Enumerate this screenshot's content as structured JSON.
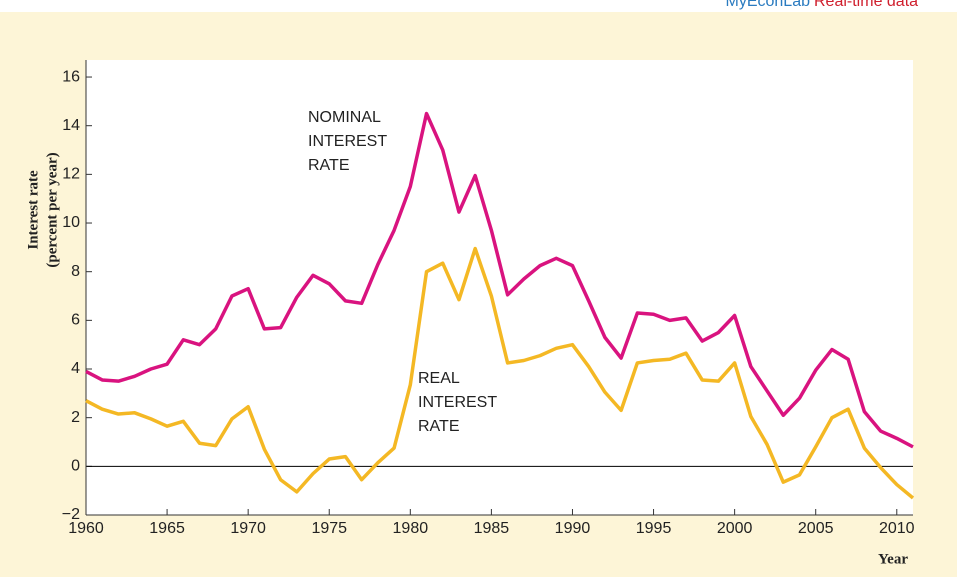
{
  "chart_data": {
    "type": "line",
    "header": {
      "brand": "MyEconLab",
      "tag": "Real-time data"
    },
    "ylabel": [
      "Interest rate",
      "(percent per year)"
    ],
    "xlabel": "Year",
    "x": [
      1960,
      1961,
      1962,
      1963,
      1964,
      1965,
      1966,
      1967,
      1968,
      1969,
      1970,
      1971,
      1972,
      1973,
      1974,
      1975,
      1976,
      1977,
      1978,
      1979,
      1980,
      1981,
      1982,
      1983,
      1984,
      1985,
      1986,
      1987,
      1988,
      1989,
      1990,
      1991,
      1992,
      1993,
      1994,
      1995,
      1996,
      1997,
      1998,
      1999,
      2000,
      2001,
      2002,
      2003,
      2004,
      2005,
      2006,
      2007,
      2008,
      2009,
      2010,
      2011
    ],
    "series": [
      {
        "name": "NOMINAL INTEREST RATE",
        "color": "#d9137f",
        "values": [
          3.9,
          3.55,
          3.5,
          3.7,
          4.0,
          4.2,
          5.2,
          5.0,
          5.65,
          7.0,
          7.3,
          5.65,
          5.7,
          6.95,
          7.85,
          7.5,
          6.8,
          6.7,
          8.3,
          9.7,
          11.5,
          14.5,
          13.0,
          10.45,
          11.95,
          9.7,
          7.05,
          7.7,
          8.25,
          8.55,
          8.25,
          6.8,
          5.3,
          4.45,
          6.3,
          6.25,
          6.0,
          6.1,
          5.15,
          5.5,
          6.2,
          4.1,
          3.1,
          2.1,
          2.8,
          3.95,
          4.8,
          4.4,
          2.25,
          1.45,
          1.15,
          0.8
        ]
      },
      {
        "name": "REAL INTEREST RATE",
        "color": "#f4b824",
        "values": [
          2.7,
          2.35,
          2.15,
          2.2,
          1.95,
          1.65,
          1.85,
          0.95,
          0.85,
          1.95,
          2.45,
          0.7,
          -0.55,
          -1.05,
          -0.3,
          0.3,
          0.4,
          -0.55,
          0.15,
          0.75,
          3.35,
          8.0,
          8.35,
          6.85,
          8.95,
          7.0,
          4.25,
          4.35,
          4.55,
          4.85,
          5.0,
          4.1,
          3.05,
          2.3,
          4.25,
          4.35,
          4.4,
          4.65,
          3.55,
          3.5,
          4.25,
          2.05,
          0.9,
          -0.65,
          -0.35,
          0.8,
          2.0,
          2.35,
          0.75,
          -0.05,
          -0.75,
          -1.3
        ]
      }
    ],
    "xlim": [
      1960,
      2011
    ],
    "xticks": [
      1960,
      1965,
      1970,
      1975,
      1980,
      1985,
      1990,
      1995,
      2000,
      2005,
      2010
    ],
    "ylim": [
      -2,
      16.7
    ],
    "yticks": [
      {
        "value": -2,
        "label": "−2"
      },
      0,
      2,
      4,
      6,
      8,
      10,
      12,
      14,
      16
    ],
    "zero_line": true
  }
}
